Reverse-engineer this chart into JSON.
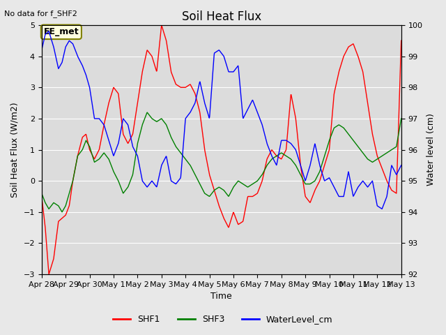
{
  "title": "Soil Heat Flux",
  "top_left_note": "No data for f_SHF2",
  "ylabel_left": "Soil Heat Flux (W/m2)",
  "ylabel_right": "Water level (cm)",
  "xlabel": "Time",
  "ylim_left": [
    -3.0,
    5.0
  ],
  "ylim_right": [
    92.0,
    100.0
  ],
  "background_color": "#e8e8e8",
  "plot_bg_color": "#dcdcdc",
  "legend_entries": [
    "SHF1",
    "SHF3",
    "WaterLevel_cm"
  ],
  "legend_colors": [
    "red",
    "green",
    "blue"
  ],
  "station_label": "EE_met",
  "x_tick_labels": [
    "Apr 28",
    "Apr 29",
    "Apr 30",
    "May 1",
    "May 2",
    "May 3",
    "May 4",
    "May 5",
    "May 6",
    "May 7",
    "May 8",
    "May 9",
    "May 10",
    "May 11",
    "May 12",
    "May 13"
  ],
  "shf1_x": [
    0.0,
    0.15,
    0.3,
    0.5,
    0.7,
    0.85,
    1.0,
    1.15,
    1.3,
    1.5,
    1.7,
    1.85,
    2.0,
    2.2,
    2.4,
    2.6,
    2.8,
    3.0,
    3.2,
    3.4,
    3.6,
    3.8,
    4.0,
    4.2,
    4.4,
    4.6,
    4.8,
    5.0,
    5.2,
    5.4,
    5.6,
    5.8,
    6.0,
    6.2,
    6.4,
    6.6,
    6.8,
    7.0,
    7.2,
    7.4,
    7.6,
    7.8,
    8.0,
    8.2,
    8.4,
    8.6,
    8.8,
    9.0,
    9.2,
    9.4,
    9.6,
    9.8,
    10.0,
    10.2,
    10.4,
    10.6,
    10.8,
    11.0,
    11.2,
    11.4,
    11.6,
    11.8,
    12.0,
    12.2,
    12.4,
    12.6,
    12.8,
    13.0,
    13.2,
    13.4,
    13.6,
    13.8,
    14.0,
    14.2,
    14.4,
    14.6,
    14.8,
    15.0
  ],
  "shf1_y": [
    -0.5,
    -1.5,
    -3.0,
    -2.5,
    -1.3,
    -1.2,
    -1.1,
    -0.8,
    0.0,
    0.8,
    1.4,
    1.5,
    1.0,
    0.7,
    1.0,
    1.8,
    2.5,
    3.0,
    2.8,
    1.5,
    1.2,
    1.5,
    2.5,
    3.5,
    4.2,
    4.0,
    3.5,
    5.0,
    4.5,
    3.5,
    3.1,
    3.0,
    3.0,
    3.1,
    2.8,
    2.2,
    1.0,
    0.2,
    -0.3,
    -0.8,
    -1.2,
    -1.5,
    -1.0,
    -1.4,
    -1.3,
    -0.5,
    -0.5,
    -0.4,
    0.0,
    0.7,
    1.0,
    0.8,
    0.7,
    1.0,
    2.8,
    2.0,
    0.5,
    -0.5,
    -0.7,
    -0.3,
    0.0,
    0.5,
    1.0,
    2.8,
    3.5,
    4.0,
    4.3,
    4.4,
    4.0,
    3.5,
    2.5,
    1.5,
    0.8,
    0.4,
    0.0,
    -0.3,
    -0.4,
    4.5
  ],
  "shf3_x": [
    0.0,
    0.15,
    0.3,
    0.5,
    0.7,
    0.85,
    1.0,
    1.15,
    1.3,
    1.5,
    1.7,
    1.85,
    2.0,
    2.2,
    2.4,
    2.6,
    2.8,
    3.0,
    3.2,
    3.4,
    3.6,
    3.8,
    4.0,
    4.2,
    4.4,
    4.6,
    4.8,
    5.0,
    5.2,
    5.4,
    5.6,
    5.8,
    6.0,
    6.2,
    6.4,
    6.6,
    6.8,
    7.0,
    7.2,
    7.4,
    7.6,
    7.8,
    8.0,
    8.2,
    8.4,
    8.6,
    8.8,
    9.0,
    9.2,
    9.4,
    9.6,
    9.8,
    10.0,
    10.2,
    10.4,
    10.6,
    10.8,
    11.0,
    11.2,
    11.4,
    11.6,
    11.8,
    12.0,
    12.2,
    12.4,
    12.6,
    12.8,
    13.0,
    13.2,
    13.4,
    13.6,
    13.8,
    14.0,
    14.2,
    14.4,
    14.6,
    14.8,
    15.0
  ],
  "shf3_y": [
    -0.4,
    -0.7,
    -0.9,
    -0.7,
    -0.8,
    -1.0,
    -0.8,
    -0.4,
    0.0,
    0.8,
    1.0,
    1.3,
    1.1,
    0.6,
    0.7,
    0.9,
    0.7,
    0.3,
    0.0,
    -0.4,
    -0.2,
    0.2,
    1.2,
    1.8,
    2.2,
    2.0,
    1.9,
    2.0,
    1.8,
    1.4,
    1.1,
    0.9,
    0.7,
    0.5,
    0.2,
    -0.1,
    -0.4,
    -0.5,
    -0.3,
    -0.2,
    -0.3,
    -0.5,
    -0.2,
    0.0,
    -0.1,
    -0.2,
    -0.1,
    0.0,
    0.2,
    0.5,
    0.7,
    0.8,
    0.9,
    0.8,
    0.7,
    0.5,
    0.2,
    -0.1,
    -0.1,
    0.0,
    0.3,
    0.8,
    1.3,
    1.7,
    1.8,
    1.7,
    1.5,
    1.3,
    1.1,
    0.9,
    0.7,
    0.6,
    0.7,
    0.8,
    0.9,
    1.0,
    1.1,
    2.0
  ],
  "wl_x": [
    0.0,
    0.15,
    0.3,
    0.5,
    0.7,
    0.85,
    1.0,
    1.15,
    1.3,
    1.5,
    1.7,
    1.85,
    2.0,
    2.2,
    2.4,
    2.6,
    2.8,
    3.0,
    3.2,
    3.4,
    3.6,
    3.8,
    4.0,
    4.2,
    4.4,
    4.6,
    4.8,
    5.0,
    5.2,
    5.4,
    5.6,
    5.8,
    6.0,
    6.2,
    6.4,
    6.6,
    6.8,
    7.0,
    7.2,
    7.4,
    7.6,
    7.8,
    8.0,
    8.2,
    8.4,
    8.6,
    8.8,
    9.0,
    9.2,
    9.4,
    9.6,
    9.8,
    10.0,
    10.2,
    10.4,
    10.6,
    10.8,
    11.0,
    11.2,
    11.4,
    11.6,
    11.8,
    12.0,
    12.2,
    12.4,
    12.6,
    12.8,
    13.0,
    13.2,
    13.4,
    13.6,
    13.8,
    14.0,
    14.2,
    14.4,
    14.6,
    14.8,
    15.0
  ],
  "wl_y": [
    99.2,
    99.7,
    99.8,
    99.3,
    98.6,
    98.8,
    99.3,
    99.5,
    99.4,
    99.0,
    98.7,
    98.4,
    98.0,
    97.0,
    97.0,
    96.8,
    96.3,
    95.8,
    96.2,
    97.0,
    96.8,
    96.1,
    95.8,
    95.0,
    94.8,
    95.0,
    94.8,
    95.5,
    95.8,
    95.0,
    94.9,
    95.1,
    97.0,
    97.2,
    97.5,
    98.2,
    97.5,
    97.0,
    99.1,
    99.2,
    99.0,
    98.5,
    98.5,
    98.7,
    97.0,
    97.3,
    97.6,
    97.2,
    96.8,
    96.2,
    95.8,
    95.5,
    96.3,
    96.3,
    96.2,
    96.0,
    95.5,
    95.0,
    95.5,
    96.2,
    95.5,
    95.0,
    95.1,
    94.8,
    94.5,
    94.5,
    95.3,
    94.5,
    94.8,
    95.0,
    94.8,
    95.0,
    94.2,
    94.1,
    94.5,
    95.5,
    95.2,
    95.5
  ]
}
